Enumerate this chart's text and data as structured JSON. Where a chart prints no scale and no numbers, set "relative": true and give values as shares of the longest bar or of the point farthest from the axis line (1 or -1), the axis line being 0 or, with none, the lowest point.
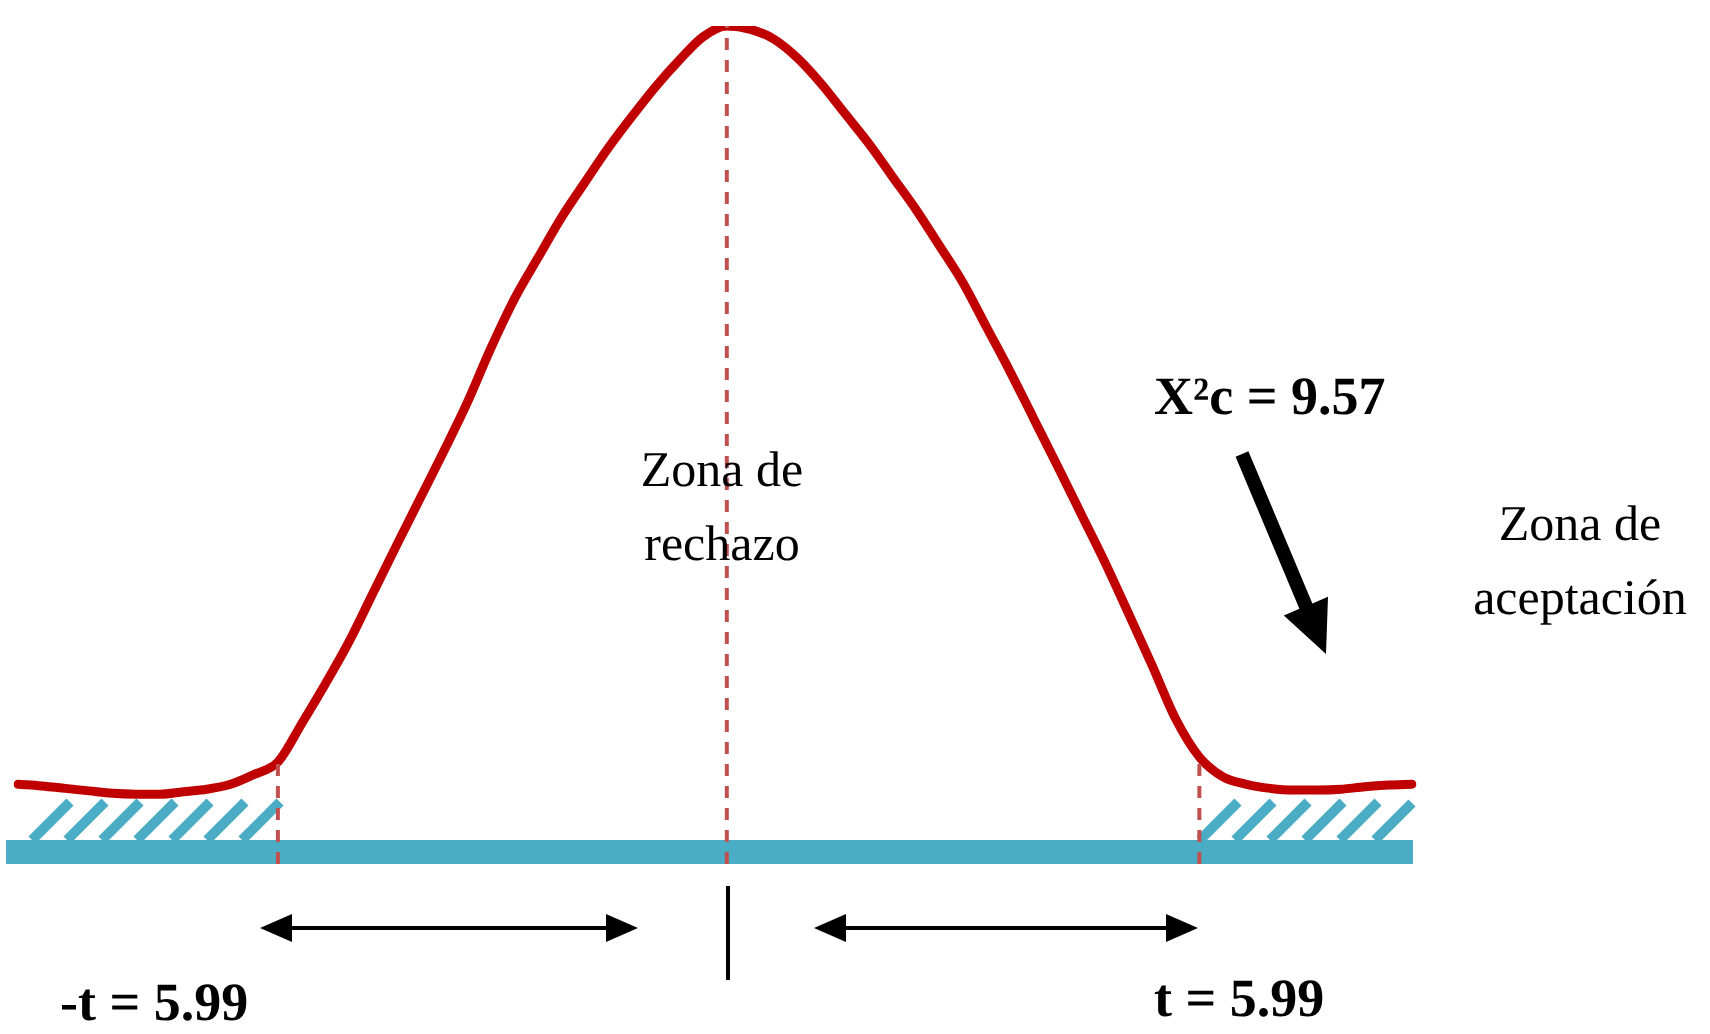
{
  "chart_data": {
    "type": "line",
    "relative": true,
    "tick_labels": false,
    "categories": [
      null,
      null,
      null,
      null,
      null,
      null,
      null,
      null,
      null,
      null,
      null,
      null,
      null,
      null,
      null,
      null,
      null,
      null,
      null,
      null,
      null,
      null,
      null,
      null,
      null,
      null,
      null,
      null,
      null,
      null,
      null,
      null,
      null,
      null,
      null,
      null,
      null,
      null,
      null,
      null,
      null,
      null,
      null,
      null,
      null,
      null,
      null,
      null,
      null,
      null,
      null,
      null,
      null,
      null,
      null,
      null,
      null,
      null,
      null,
      null
    ],
    "series": [
      {
        "color": "#c00000",
        "values": [
          0.082,
          0.08,
          0.077,
          0.074,
          0.071,
          0.07,
          0.07,
          0.073,
          0.076,
          0.082,
          0.094,
          0.109,
          0.155,
          0.203,
          0.254,
          0.312,
          0.37,
          0.427,
          0.484,
          0.543,
          0.609,
          0.669,
          0.719,
          0.768,
          0.811,
          0.853,
          0.891,
          0.927,
          0.959,
          0.987,
          1,
          0.996,
          0.984,
          0.961,
          0.93,
          0.894,
          0.858,
          0.818,
          0.778,
          0.734,
          0.689,
          0.635,
          0.581,
          0.524,
          0.467,
          0.409,
          0.351,
          0.289,
          0.226,
          0.161,
          0.115,
          0.091,
          0.082,
          0.077,
          0.075,
          0.075,
          0.076,
          0.079,
          0.081,
          0.082
        ]
      }
    ],
    "annotations": [
      "Zona de rechazo",
      "X²c = 9.57",
      "Zona de aceptación",
      "-t = 5.99",
      "t = 5.99"
    ]
  }
}
